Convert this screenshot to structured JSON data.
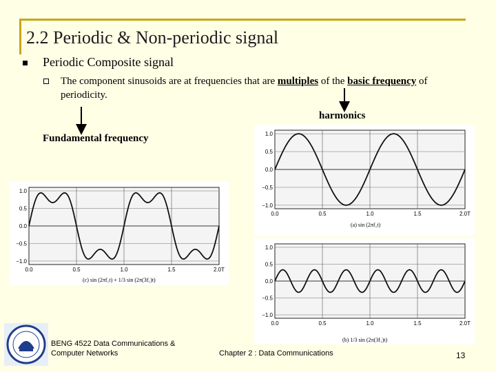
{
  "slide": {
    "title": "2.2 Periodic & Non-periodic signal",
    "bullet1": "Periodic Composite signal",
    "bullet2": {
      "prefix": "The component sinusoids are at frequencies that are",
      "multiples": "multiples",
      "middle": "of the",
      "basic_frequency": "basic frequency",
      "suffix": "of periodicity."
    },
    "label_harmonics": "harmonics",
    "label_fundamental": "Fundamental frequency"
  },
  "footer": {
    "course_line1": "BENG 4522 Data Communications &",
    "course_line2": "Computer Networks",
    "chapter": "Chapter 2 : Data Communications",
    "page_number": "13"
  },
  "chart_data": [
    {
      "id": "composite",
      "type": "line",
      "caption": "(c) sin (2πf₁t) + 1/3 sin (2π(3f₁)t)",
      "x_ticks": [
        "0.0",
        "0.5",
        "1.0",
        "1.5",
        "2.0T"
      ],
      "y_ticks": [
        "1.0",
        "0.5",
        "0.0",
        "−0.5",
        "−1.0"
      ],
      "xlim": [
        0,
        2
      ],
      "ylim": [
        -1.1,
        1.1
      ],
      "grid": true,
      "series": [
        {
          "function": "sin(2πt) + 1/3 sin(6πt)",
          "x_range": [
            0,
            2
          ]
        }
      ]
    },
    {
      "id": "fundamental",
      "type": "line",
      "caption": "(a) sin (2πf₁t)",
      "x_ticks": [
        "0.0",
        "0.5",
        "1.0",
        "1.5",
        "2.0T"
      ],
      "y_ticks": [
        "1.0",
        "0.5",
        "0.0",
        "−0.5",
        "−1.0"
      ],
      "xlim": [
        0,
        2
      ],
      "ylim": [
        -1.1,
        1.1
      ],
      "grid": true,
      "series": [
        {
          "function": "sin(2πt)",
          "x_range": [
            0,
            2
          ]
        }
      ]
    },
    {
      "id": "third-harmonic",
      "type": "line",
      "caption": "(b) 1/3 sin (2π(3f₁)t)",
      "x_ticks": [
        "0.0",
        "0.5",
        "1.0",
        "1.5",
        "2.0T"
      ],
      "y_ticks": [
        "1.0",
        "0.5",
        "0.0",
        "−0.5",
        "−1.0"
      ],
      "xlim": [
        0,
        2
      ],
      "ylim": [
        -1.1,
        1.1
      ],
      "grid": true,
      "series": [
        {
          "function": "1/3 sin(6πt)",
          "x_range": [
            0,
            2
          ]
        }
      ]
    }
  ],
  "colors": {
    "background": "#ffffe6",
    "frame": "#c9a617",
    "text": "#000000"
  }
}
